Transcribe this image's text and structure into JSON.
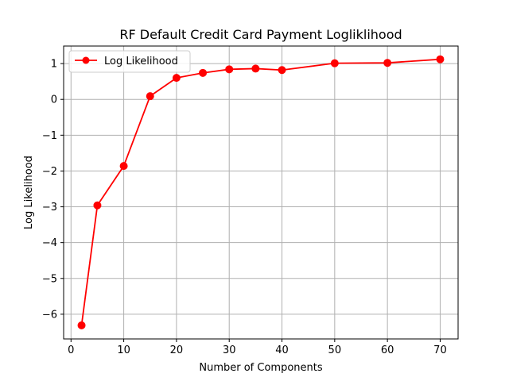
{
  "chart_data": {
    "type": "line",
    "title": "RF Default Credit Card Payment Logliklihood",
    "xlabel": "Number of Components",
    "ylabel": "Log Likelihood",
    "xlim": [
      -1.4,
      73.4
    ],
    "ylim": [
      -6.69,
      1.49
    ],
    "x_ticks": [
      0,
      10,
      20,
      30,
      40,
      50,
      60,
      70
    ],
    "x_tick_labels": [
      "0",
      "10",
      "20",
      "30",
      "40",
      "50",
      "60",
      "70"
    ],
    "y_ticks": [
      -6,
      -5,
      -4,
      -3,
      -2,
      -1,
      0,
      1
    ],
    "y_tick_labels": [
      "−6",
      "−5",
      "−4",
      "−3",
      "−2",
      "−1",
      "0",
      "1"
    ],
    "grid": true,
    "legend_position": "top-left",
    "series": [
      {
        "name": "Log Likelihood",
        "color": "#ff0000",
        "marker": "circle",
        "x": [
          2,
          5,
          10,
          15,
          20,
          25,
          30,
          35,
          40,
          50,
          60,
          70
        ],
        "y": [
          -6.31,
          -2.96,
          -1.86,
          0.09,
          0.6,
          0.74,
          0.84,
          0.86,
          0.82,
          1.01,
          1.02,
          1.12
        ]
      }
    ]
  }
}
